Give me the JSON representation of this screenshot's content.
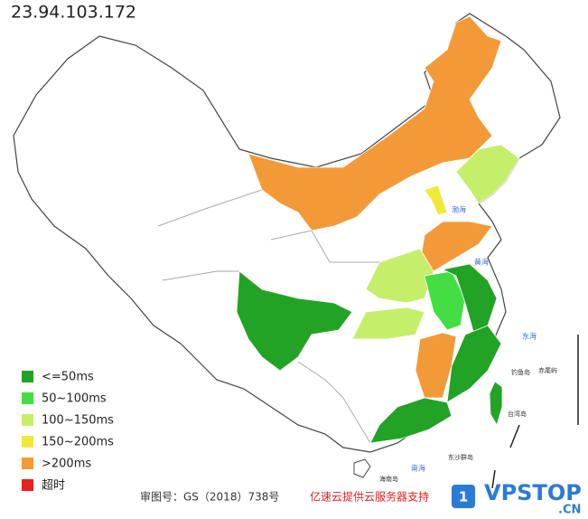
{
  "title": "23.94.103.172",
  "legend": [
    {
      "label": "<=50ms",
      "color": "#22a325"
    },
    {
      "label": "50~100ms",
      "color": "#44dd44"
    },
    {
      "label": "100~150ms",
      "color": "#c5ef6a"
    },
    {
      "label": "150~200ms",
      "color": "#f1e83a"
    },
    {
      "label": ">200ms",
      "color": "#f39a38"
    },
    {
      "label": "超时",
      "color": "#e52020"
    }
  ],
  "footer": {
    "approval": "审图号：GS（2018）738号",
    "provider": "亿速云提供云服务器支持"
  },
  "watermark": {
    "badge": "1",
    "brand": "VPSTOP",
    "domain": ".CN"
  },
  "map_labels": {
    "bohai": "渤海",
    "huanghai": "黄海",
    "donghai": "东海",
    "taiwan": "台湾岛",
    "diaoyu": "钓鱼岛",
    "chiwei": "赤尾屿",
    "dongsha": "东沙群岛",
    "hainan": "海南岛",
    "nanhai": "南海"
  }
}
